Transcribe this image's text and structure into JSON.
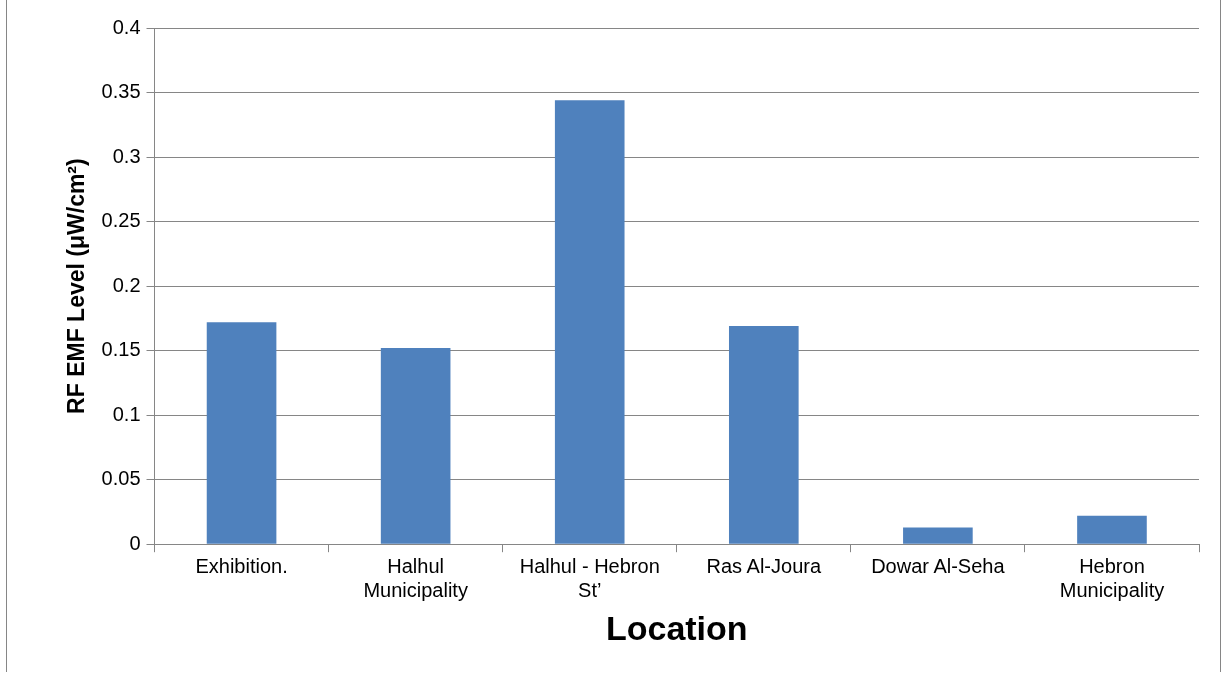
{
  "chart_data": {
    "type": "bar",
    "xlabel": "Location",
    "ylabel": "RF EMF Level (μW/cm²)",
    "categories": [
      "Exhibition.",
      "Halhul Municipality",
      "Halhul - Hebron St’",
      "Ras Al-Joura",
      "Dowar Al-Seha",
      "Hebron Municipality"
    ],
    "values": [
      0.172,
      0.152,
      0.344,
      0.169,
      0.013,
      0.022
    ],
    "color": "#4f81bd",
    "ylim": [
      0,
      0.4
    ],
    "yticks": [
      0,
      0.05,
      0.1,
      0.15,
      0.2,
      0.25,
      0.3,
      0.35,
      0.4
    ],
    "grid": "y",
    "legend": false
  }
}
